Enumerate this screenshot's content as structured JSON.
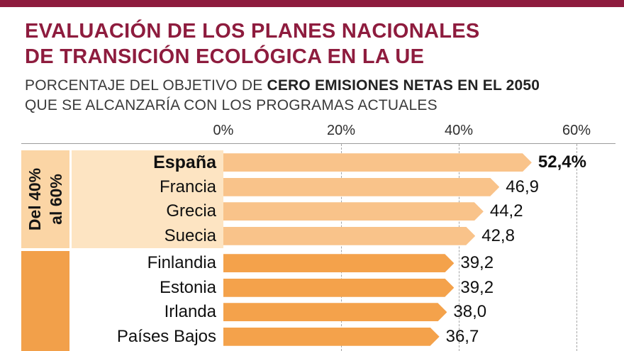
{
  "colors": {
    "accent_maroon": "#8e1c3e",
    "subtitle_text": "#3a3a3a",
    "axis_line": "#9b9b9b",
    "gridline": "#a6a6a6"
  },
  "header": {
    "title_line1": "EVALUACIÓN DE LOS PLANES NACIONALES",
    "title_line2": "DE TRANSICIÓN ECOLÓGICA EN LA UE",
    "subtitle_prefix": "PORCENTAJE DEL OBJETIVO DE ",
    "subtitle_bold": "CERO EMISIONES NETAS EN EL 2050",
    "subtitle_line2": "QUE SE ALCANZARÍA CON LOS PROGRAMAS ACTUALES"
  },
  "chart_data": {
    "type": "bar",
    "orientation": "horizontal",
    "title": "EVALUACIÓN DE LOS PLANES NACIONALES DE TRANSICIÓN ECOLÓGICA EN LA UE",
    "subtitle": "PORCENTAJE DEL OBJETIVO DE CERO EMISIONES NETAS EN EL 2050 QUE SE ALCANZARÍA CON LOS PROGRAMAS ACTUALES",
    "unit": "%",
    "xlim": [
      0,
      66
    ],
    "axis": {
      "ticks": [
        {
          "label": "0%",
          "value": 0
        },
        {
          "label": "20%",
          "value": 20
        },
        {
          "label": "40%",
          "value": 40
        },
        {
          "label": "60%",
          "value": 60
        }
      ],
      "gridline_values": [
        20,
        40,
        60
      ],
      "grid": "dashed-vertical"
    },
    "groups": [
      {
        "label_lines": [
          "Del 40%",
          "al 60%"
        ],
        "colors": {
          "bar": "#f9c38a",
          "label_bg": "#fde4c2",
          "strip_bg": "#fbd5a5"
        },
        "rows": [
          {
            "country": "España",
            "value": 52.4,
            "value_label": "52,4%",
            "emphasis": true
          },
          {
            "country": "Francia",
            "value": 46.9,
            "value_label": "46,9",
            "emphasis": false
          },
          {
            "country": "Grecia",
            "value": 44.2,
            "value_label": "44,2",
            "emphasis": false
          },
          {
            "country": "Suecia",
            "value": 42.8,
            "value_label": "42,8",
            "emphasis": false
          }
        ]
      },
      {
        "label_lines": [],
        "colors": {
          "bar": "#f4a24b",
          "label_bg": "",
          "strip_bg": "#f2a04a"
        },
        "rows": [
          {
            "country": "Finlandia",
            "value": 39.2,
            "value_label": "39,2",
            "emphasis": false
          },
          {
            "country": "Estonia",
            "value": 39.2,
            "value_label": "39,2",
            "emphasis": false
          },
          {
            "country": "Irlanda",
            "value": 38.0,
            "value_label": "38,0",
            "emphasis": false
          },
          {
            "country": "Países Bajos",
            "value": 36.7,
            "value_label": "36,7",
            "emphasis": false
          }
        ]
      }
    ]
  }
}
